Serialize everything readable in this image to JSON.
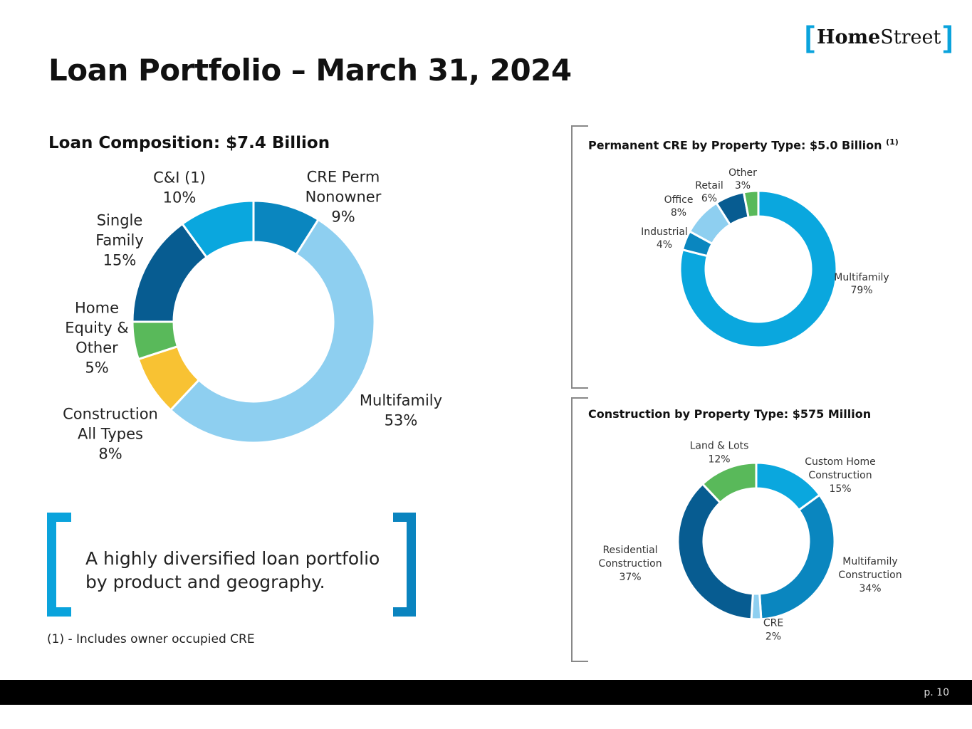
{
  "logo": {
    "bracket_left": "[",
    "home": "Home",
    "street": "Street",
    "bracket_right": "]"
  },
  "title": "Loan Portfolio – March 31, 2024",
  "callout": {
    "line1": "A highly diversified loan portfolio",
    "line2": "by product and geography."
  },
  "footnote": "(1) - Includes owner occupied CRE",
  "page_number": "p. 10",
  "chart_data": [
    {
      "type": "pie",
      "title": "Loan Composition: $7.4 Billion",
      "slices": [
        {
          "label_lines": [
            "CRE Perm",
            "Nonowner",
            "9%"
          ],
          "value": 9,
          "color": "#0a86bf"
        },
        {
          "label_lines": [
            "Multifamily",
            "53%"
          ],
          "value": 53,
          "color": "#8ecff0"
        },
        {
          "label_lines": [
            "Construction",
            "All Types",
            "8%"
          ],
          "value": 8,
          "color": "#f8c233"
        },
        {
          "label_lines": [
            "Home",
            "Equity &",
            "Other",
            "5%"
          ],
          "value": 5,
          "color": "#59b95a"
        },
        {
          "label_lines": [
            "Single",
            "Family",
            "15%"
          ],
          "value": 15,
          "color": "#075c91"
        },
        {
          "label_lines": [
            "C&I (1)",
            "10%"
          ],
          "value": 10,
          "color": "#0aa7de"
        }
      ]
    },
    {
      "type": "pie",
      "title": "Permanent CRE by Property Type: $5.0 Billion",
      "title_sup": "(1)",
      "slices": [
        {
          "label_lines": [
            "Multifamily",
            "79%"
          ],
          "value": 79,
          "color": "#0aa7de"
        },
        {
          "label_lines": [
            "Industrial",
            "4%"
          ],
          "value": 4,
          "color": "#0a86bf"
        },
        {
          "label_lines": [
            "Office",
            "8%"
          ],
          "value": 8,
          "color": "#8ecff0"
        },
        {
          "label_lines": [
            "Retail",
            "6%"
          ],
          "value": 6,
          "color": "#075c91"
        },
        {
          "label_lines": [
            "Other",
            "3%"
          ],
          "value": 3,
          "color": "#59b95a"
        }
      ]
    },
    {
      "type": "pie",
      "title": "Construction by Property Type: $575 Million",
      "slices": [
        {
          "label_lines": [
            "Custom Home",
            "Construction",
            "15%"
          ],
          "value": 15,
          "color": "#0aa7de"
        },
        {
          "label_lines": [
            "Multifamily",
            "Construction",
            "34%"
          ],
          "value": 34,
          "color": "#0a86bf"
        },
        {
          "label_lines": [
            "CRE",
            "2%"
          ],
          "value": 2,
          "color": "#8ecff0"
        },
        {
          "label_lines": [
            "Residential",
            "Construction",
            "37%"
          ],
          "value": 37,
          "color": "#075c91"
        },
        {
          "label_lines": [
            "Land & Lots",
            "12%"
          ],
          "value": 12,
          "color": "#59b95a"
        }
      ]
    }
  ]
}
